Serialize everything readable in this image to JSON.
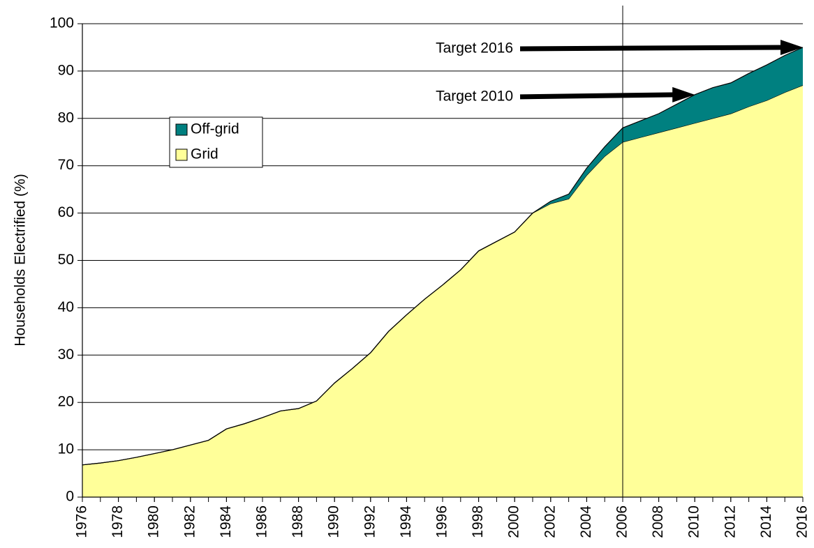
{
  "chart_data": {
    "type": "area",
    "y_label": "Households Electrified (%)",
    "x": [
      1976,
      1977,
      1978,
      1979,
      1980,
      1981,
      1982,
      1983,
      1984,
      1985,
      1986,
      1987,
      1988,
      1989,
      1990,
      1991,
      1992,
      1993,
      1994,
      1995,
      1996,
      1997,
      1998,
      1999,
      2000,
      2001,
      2002,
      2003,
      2004,
      2005,
      2006,
      2007,
      2008,
      2009,
      2010,
      2011,
      2012,
      2013,
      2014,
      2015,
      2016
    ],
    "series": [
      {
        "name": "Grid",
        "color": "#ffff99",
        "values": [
          6.8,
          7.2,
          7.7,
          8.4,
          9.2,
          10,
          11,
          12,
          14.4,
          15.5,
          16.8,
          18.2,
          18.7,
          20.3,
          24.1,
          27.2,
          30.5,
          35,
          38.5,
          41.8,
          44.8,
          48,
          52,
          54,
          56,
          60,
          62,
          63,
          68,
          72,
          75,
          76,
          77,
          78,
          79,
          80,
          81,
          82.5,
          83.8,
          85.5,
          87
        ]
      },
      {
        "name": "Off-grid",
        "color": "#008080",
        "values": [
          0,
          0,
          0,
          0,
          0,
          0,
          0,
          0,
          0,
          0,
          0,
          0,
          0,
          0,
          0,
          0,
          0,
          0,
          0,
          0,
          0,
          0,
          0,
          0,
          0,
          0,
          0.5,
          1,
          1.5,
          2,
          3,
          3.5,
          4,
          5,
          6,
          6.5,
          6.5,
          7,
          7.5,
          7.8,
          8
        ]
      }
    ],
    "xlim": [
      1976,
      2016
    ],
    "xticks": [
      1976,
      1978,
      1980,
      1982,
      1984,
      1986,
      1988,
      1990,
      1992,
      1994,
      1996,
      1998,
      2000,
      2002,
      2004,
      2006,
      2008,
      2010,
      2012,
      2014,
      2016
    ],
    "ylim": [
      0,
      100
    ],
    "yticks": [
      0,
      10,
      20,
      30,
      40,
      50,
      60,
      70,
      80,
      90,
      100
    ],
    "grid": true,
    "vline": 2006,
    "annotations": [
      {
        "text": "Target 2016",
        "x": 2016,
        "y": 95
      },
      {
        "text": "Target 2010",
        "x": 2010,
        "y": 85
      }
    ]
  }
}
